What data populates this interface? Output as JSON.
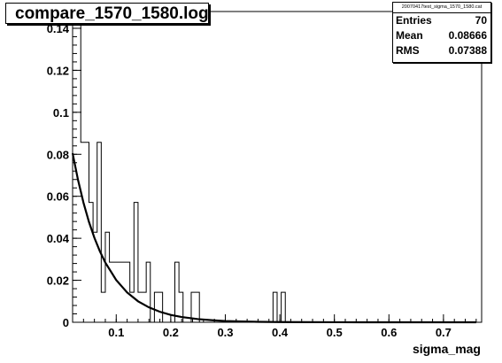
{
  "title": "compare_1570_1580.log",
  "stats": {
    "name": "20070417test_sigma_1570_1580.cat",
    "rows": [
      {
        "label": "Entries",
        "value": "70"
      },
      {
        "label": "Mean",
        "value": "0.08666"
      },
      {
        "label": "RMS",
        "value": "0.07388"
      }
    ]
  },
  "chart_data": {
    "type": "bar",
    "title": "compare_1570_1580.log",
    "xlabel": "sigma_mag",
    "ylabel": "",
    "xlim": [
      0.02,
      0.77
    ],
    "ylim": [
      0,
      0.148
    ],
    "x_ticks": [
      0.1,
      0.2,
      0.3,
      0.4,
      0.5,
      0.6,
      0.7
    ],
    "x_tick_labels": [
      "0.1",
      "0.2",
      "0.3",
      "0.4",
      "0.5",
      "0.6",
      "0.7"
    ],
    "y_ticks": [
      0,
      0.02,
      0.04,
      0.06,
      0.08,
      0.1,
      0.12,
      0.14
    ],
    "y_tick_labels": [
      "0",
      "0.02",
      "0.04",
      "0.06",
      "0.08",
      "0.1",
      "0.12",
      "0.14"
    ],
    "bin_width": 0.0075,
    "histogram": {
      "bin_edges_start": 0.02,
      "values": [
        0.1429,
        0.1429,
        0.0857,
        0.0857,
        0.0571,
        0.0429,
        0.0857,
        0.0143,
        0.0429,
        0.0286,
        0.0286,
        0.0286,
        0.0286,
        0.0286,
        0.0143,
        0.0571,
        0.0143,
        0.0143,
        0.0286,
        0,
        0.0143,
        0.0143,
        0,
        0,
        0,
        0.0286,
        0.0143,
        0,
        0,
        0.0143,
        0.0143,
        0,
        0,
        0,
        0,
        0,
        0,
        0,
        0,
        0,
        0,
        0,
        0,
        0,
        0,
        0,
        0,
        0,
        0,
        0.0143,
        0,
        0.0143,
        0,
        0,
        0,
        0,
        0,
        0,
        0,
        0
      ]
    },
    "fit": {
      "name": "exponential fit",
      "x": [
        0.02,
        0.03,
        0.04,
        0.05,
        0.06,
        0.07,
        0.08,
        0.1,
        0.12,
        0.14,
        0.16,
        0.18,
        0.2,
        0.22,
        0.25,
        0.28,
        0.3,
        0.33,
        0.36,
        0.4,
        0.45,
        0.5,
        0.55,
        0.6,
        0.65,
        0.7,
        0.76
      ],
      "y": [
        0.0805,
        0.0677,
        0.0569,
        0.0478,
        0.0402,
        0.0338,
        0.0284,
        0.0201,
        0.0142,
        0.01,
        0.0071,
        0.005,
        0.0035,
        0.0025,
        0.0015,
        0.0009,
        0.0006,
        0.0004,
        0.0002,
        0.0001,
        5e-05,
        2e-05,
        1e-05,
        0,
        0,
        0,
        0
      ]
    }
  }
}
